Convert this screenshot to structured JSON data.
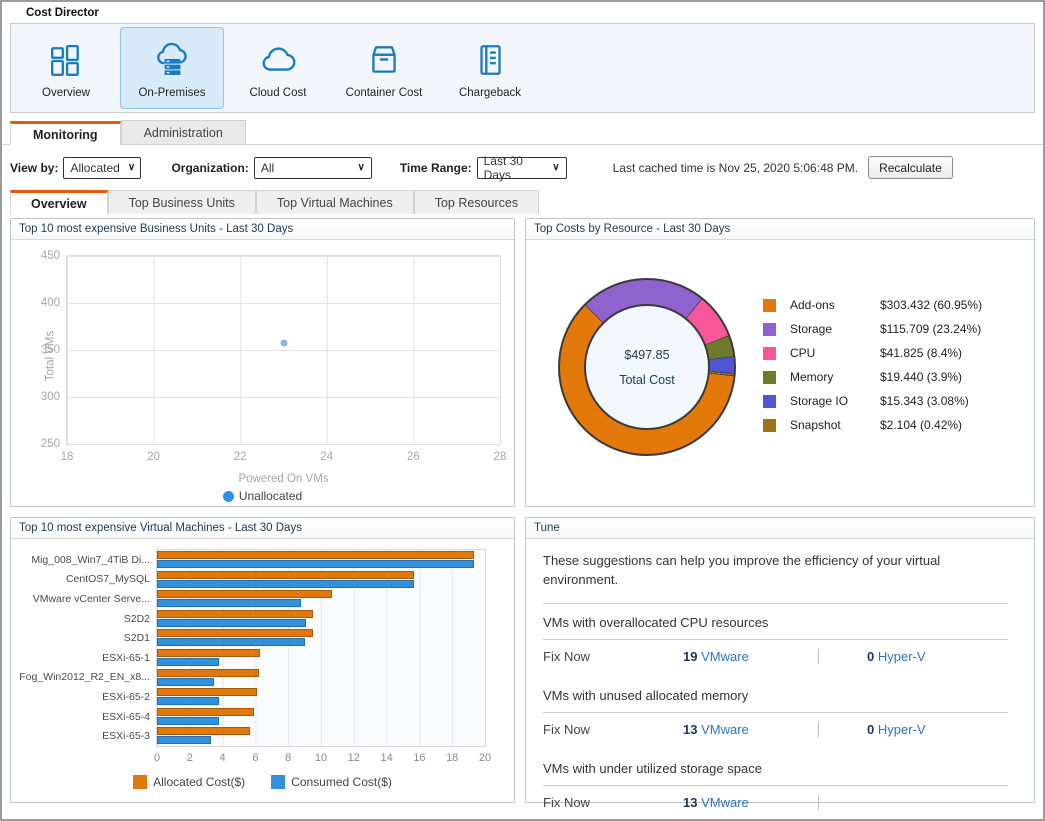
{
  "app": {
    "title": "Cost Director"
  },
  "toolbar": {
    "items": [
      {
        "label": "Overview",
        "icon": "overview-icon",
        "selected": false
      },
      {
        "label": "On-Premises",
        "icon": "on-premises-icon",
        "selected": true
      },
      {
        "label": "Cloud Cost",
        "icon": "cloud-icon",
        "selected": false
      },
      {
        "label": "Container Cost",
        "icon": "container-icon",
        "selected": false
      },
      {
        "label": "Chargeback",
        "icon": "chargeback-icon",
        "selected": false
      }
    ]
  },
  "tabs": [
    {
      "label": "Monitoring",
      "active": true
    },
    {
      "label": "Administration",
      "active": false
    }
  ],
  "filters": {
    "view_by_label": "View by:",
    "view_by_value": "Allocated",
    "organization_label": "Organization:",
    "organization_value": "All",
    "time_range_label": "Time Range:",
    "time_range_value": "Last 30 Days",
    "cached_text": "Last cached time is Nov 25, 2020 5:06:48 PM.",
    "recalculate_label": "Recalculate"
  },
  "subtabs": [
    {
      "label": "Overview",
      "active": true
    },
    {
      "label": "Top Business Units",
      "active": false
    },
    {
      "label": "Top Virtual Machines",
      "active": false
    },
    {
      "label": "Top Resources",
      "active": false
    }
  ],
  "panels": {
    "business_units": {
      "title": "Top 10 most expensive Business Units - Last 30 Days"
    },
    "resources": {
      "title": "Top Costs by Resource - Last 30 Days"
    },
    "virtual_machines": {
      "title": "Top 10 most expensive Virtual Machines - Last 30 Days"
    },
    "tune": {
      "title": "Tune",
      "intro": "These suggestions can help you improve the efficiency of your virtual environment.",
      "sections": [
        {
          "heading": "VMs with overallocated CPU resources",
          "fix_label": "Fix Now",
          "vmware_count": "19",
          "vmware_label": "VMware",
          "hyperv_count": "0",
          "hyperv_label": "Hyper-V"
        },
        {
          "heading": "VMs with unused allocated memory",
          "fix_label": "Fix Now",
          "vmware_count": "13",
          "vmware_label": "VMware",
          "hyperv_count": "0",
          "hyperv_label": "Hyper-V"
        },
        {
          "heading": "VMs with under utilized storage space",
          "fix_label": "Fix Now",
          "vmware_count": "13",
          "vmware_label": "VMware",
          "hyperv_count": "",
          "hyperv_label": ""
        }
      ]
    }
  },
  "chart_data": [
    {
      "type": "scatter",
      "title": "Top 10 most expensive Business Units - Last 30 Days",
      "xlabel": "Powered On VMs",
      "ylabel": "Total VMs",
      "xlim": [
        18,
        28
      ],
      "ylim": [
        250,
        450
      ],
      "xticks": [
        18,
        20,
        22,
        24,
        26,
        28
      ],
      "yticks": [
        250,
        300,
        350,
        400,
        450
      ],
      "grid": true,
      "legend_position": "bottom",
      "series": [
        {
          "name": "Unallocated",
          "color": "#2E8FE8",
          "point_color": "#85B8EA",
          "points": [
            {
              "x": 23,
              "y": 357
            }
          ]
        }
      ]
    },
    {
      "type": "pie",
      "title": "Top Costs by Resource - Last 30 Days",
      "donut": true,
      "start_angle_deg": 95.5,
      "center": {
        "value": "$497.85",
        "label": "Total Cost"
      },
      "legend_position": "right",
      "slices": [
        {
          "name": "Add-ons",
          "amount": 303.432,
          "pct": 60.95,
          "value_label": "$303.432 (60.95%)",
          "color": "#E2790A"
        },
        {
          "name": "Storage",
          "amount": 115.709,
          "pct": 23.24,
          "value_label": "$115.709 (23.24%)",
          "color": "#8E63CE"
        },
        {
          "name": "CPU",
          "amount": 41.825,
          "pct": 8.4,
          "value_label": "$41.825 (8.4%)",
          "color": "#F9569A"
        },
        {
          "name": "Memory",
          "amount": 19.44,
          "pct": 3.9,
          "value_label": "$19.440 (3.9%)",
          "color": "#6E7B2A"
        },
        {
          "name": "Storage IO",
          "amount": 15.343,
          "pct": 3.08,
          "value_label": "$15.343 (3.08%)",
          "color": "#4F55D6"
        },
        {
          "name": "Snapshot",
          "amount": 2.104,
          "pct": 0.42,
          "value_label": "$2.104 (0.42%)",
          "color": "#9A7418"
        }
      ]
    },
    {
      "type": "bar",
      "orientation": "horizontal",
      "title": "Top 10 most expensive Virtual Machines - Last 30 Days",
      "xlim": [
        0,
        20
      ],
      "xticks": [
        0,
        2,
        4,
        6,
        8,
        10,
        12,
        14,
        16,
        18,
        20
      ],
      "grid": true,
      "legend_position": "bottom",
      "categories": [
        "Mig_008_Win7_4TiB Di...",
        "CentOS7_MySQL",
        "VMware vCenter Serve...",
        "S2D2",
        "S2D1",
        "ESXi-65-1",
        "Fog_Win2012_R2_EN_x8...",
        "ESXi-65-2",
        "ESXi-65-4",
        "ESXi-65-3"
      ],
      "series": [
        {
          "name": "Allocated Cost($)",
          "color": "#E2770D",
          "values": [
            19.3,
            15.7,
            10.7,
            9.5,
            9.5,
            6.3,
            6.2,
            6.1,
            5.9,
            5.7
          ]
        },
        {
          "name": "Consumed Cost($)",
          "color": "#3390DB",
          "values": [
            19.3,
            15.7,
            8.8,
            9.1,
            9.0,
            3.8,
            3.5,
            3.8,
            3.8,
            3.3
          ]
        }
      ]
    }
  ]
}
